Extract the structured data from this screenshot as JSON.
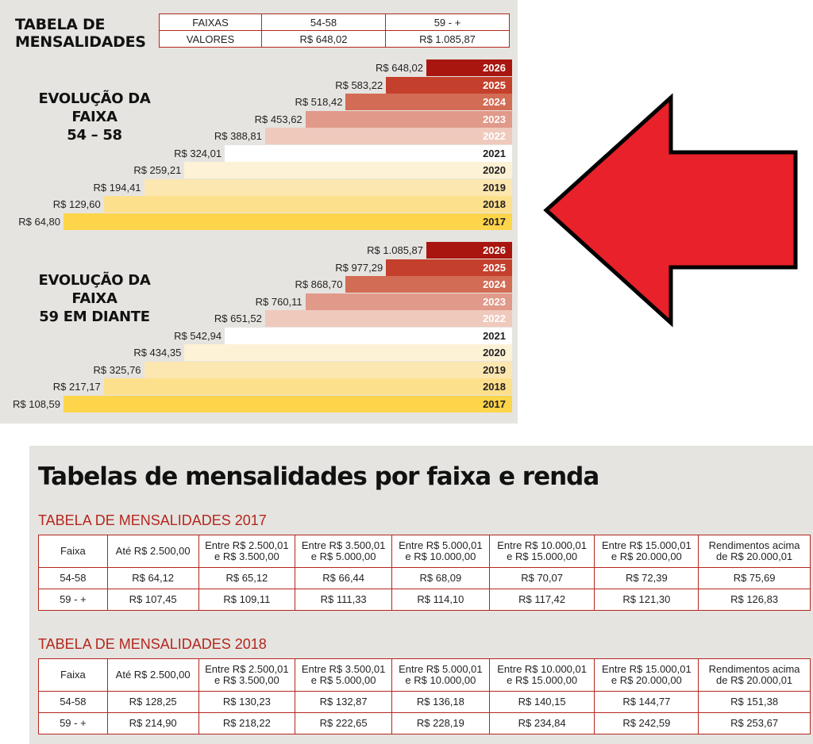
{
  "summary": {
    "title_line1": "TABELA DE",
    "title_line2": "MENSALIDADES",
    "rows": [
      {
        "label": "FAIXAS",
        "values": [
          "54-58",
          "59 - +"
        ]
      },
      {
        "label": "VALORES",
        "values": [
          "R$ 648,02",
          "R$ 1.085,87"
        ]
      }
    ]
  },
  "chart_data": [
    {
      "type": "bar",
      "title_line1": "EVOLUÇÃO DA FAIXA",
      "title_line2": "54 – 58",
      "categories": [
        "2026",
        "2025",
        "2024",
        "2023",
        "2022",
        "2021",
        "2020",
        "2019",
        "2018",
        "2017"
      ],
      "values": [
        648.02,
        583.22,
        518.42,
        453.62,
        388.81,
        324.01,
        259.21,
        194.41,
        129.6,
        64.8
      ],
      "value_labels": [
        "R$ 648,02",
        "R$ 583,22",
        "R$ 518,42",
        "R$ 453,62",
        "R$ 388,81",
        "R$ 324,01",
        "R$ 259,21",
        "R$ 194,41",
        "R$ 129,60",
        "R$ 64,80"
      ],
      "orientation": "horizontal",
      "colors": [
        "#a8160f",
        "#c5402c",
        "#d36c55",
        "#e1998a",
        "#f0c9bd",
        "#ffffff",
        "#fdf2d6",
        "#fde7b0",
        "#fde08c",
        "#fdd54a"
      ]
    },
    {
      "type": "bar",
      "title_line1": "EVOLUÇÃO DA FAIXA",
      "title_line2": "59 EM DIANTE",
      "categories": [
        "2026",
        "2025",
        "2024",
        "2023",
        "2022",
        "2021",
        "2020",
        "2019",
        "2018",
        "2017"
      ],
      "values": [
        1085.87,
        977.29,
        868.7,
        760.11,
        651.52,
        542.94,
        434.35,
        325.76,
        217.17,
        108.59
      ],
      "value_labels": [
        "R$ 1.085,87",
        "R$ 977,29",
        "R$ 868,70",
        "R$ 760,11",
        "R$ 651,52",
        "R$ 542,94",
        "R$ 434,35",
        "R$ 325,76",
        "R$ 217,17",
        "R$ 108,59"
      ],
      "orientation": "horizontal",
      "colors": [
        "#a8160f",
        "#c5402c",
        "#d36c55",
        "#e1998a",
        "#f0c9bd",
        "#ffffff",
        "#fdf2d6",
        "#fde7b0",
        "#fde08c",
        "#fdd54a"
      ]
    }
  ],
  "arrow": {
    "color": "#e8212a",
    "direction": "left"
  },
  "bottom": {
    "title": "Tabelas de mensalidades por faixa e renda",
    "tables": [
      {
        "title": "TABELA DE MENSALIDADES 2017",
        "headers": [
          [
            "Faixa"
          ],
          [
            "Até R$ 2.500,00"
          ],
          [
            "Entre R$ 2.500,01",
            "e R$ 3.500,00"
          ],
          [
            "Entre R$ 3.500,01",
            "e R$ 5.000,00"
          ],
          [
            "Entre R$ 5.000,01",
            "e R$ 10.000,00"
          ],
          [
            "Entre R$ 10.000,01",
            "e R$ 15.000,00"
          ],
          [
            "Entre R$ 15.000,01",
            "e R$ 20.000,00"
          ],
          [
            "Rendimentos acima",
            "de R$ 20.000,01"
          ]
        ],
        "rows": [
          [
            "54-58",
            "R$ 64,12",
            "R$ 65,12",
            "R$ 66,44",
            "R$ 68,09",
            "R$ 70,07",
            "R$ 72,39",
            "R$ 75,69"
          ],
          [
            "59 - +",
            "R$ 107,45",
            "R$ 109,11",
            "R$ 111,33",
            "R$ 114,10",
            "R$ 117,42",
            "R$ 121,30",
            "R$ 126,83"
          ]
        ]
      },
      {
        "title": "TABELA DE MENSALIDADES 2018",
        "headers": [
          [
            "Faixa"
          ],
          [
            "Até R$ 2.500,00"
          ],
          [
            "Entre R$ 2.500,01",
            "e R$ 3.500,00"
          ],
          [
            "Entre R$ 3.500,01",
            "e R$ 5.000,00"
          ],
          [
            "Entre R$ 5.000,01",
            "e R$ 10.000,00"
          ],
          [
            "Entre R$ 10.000,01",
            "e R$ 15.000,00"
          ],
          [
            "Entre R$ 15.000,01",
            "e R$ 20.000,00"
          ],
          [
            "Rendimentos acima",
            "de R$ 20.000,01"
          ]
        ],
        "rows": [
          [
            "54-58",
            "R$ 128,25",
            "R$ 130,23",
            "R$ 132,87",
            "R$ 136,18",
            "R$ 140,15",
            "R$ 144,77",
            "R$ 151,38"
          ],
          [
            "59 - +",
            "R$ 214,90",
            "R$ 218,22",
            "R$ 222,65",
            "R$ 228,19",
            "R$ 234,84",
            "R$ 242,59",
            "R$ 253,67"
          ]
        ]
      }
    ]
  }
}
